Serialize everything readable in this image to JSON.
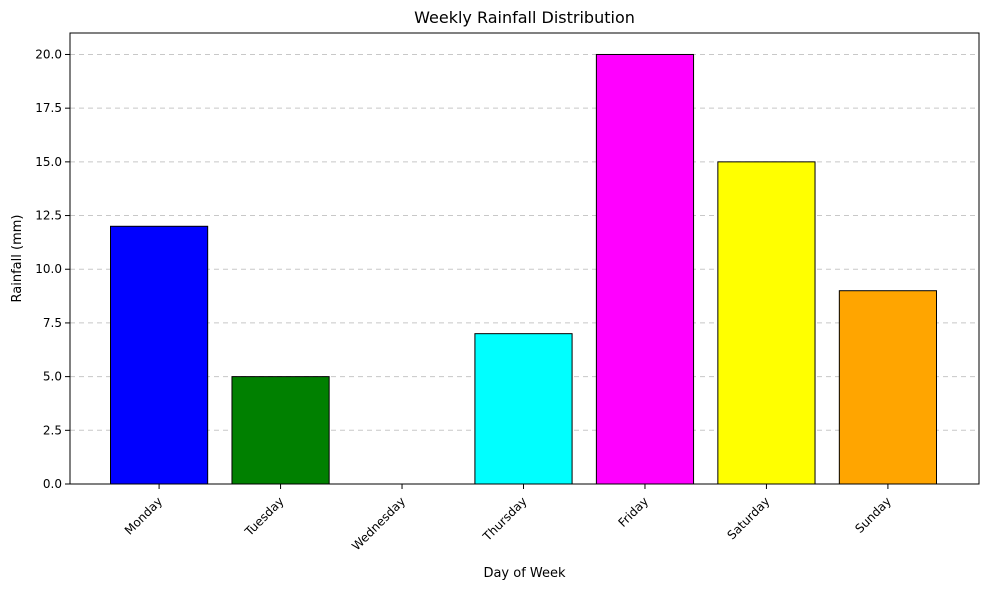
{
  "chart_data": {
    "type": "bar",
    "title": "Weekly Rainfall Distribution",
    "xlabel": "Day of Week",
    "ylabel": "Rainfall (mm)",
    "categories": [
      "Monday",
      "Tuesday",
      "Wednesday",
      "Thursday",
      "Friday",
      "Saturday",
      "Sunday"
    ],
    "values": [
      12,
      5,
      0,
      7,
      20,
      15,
      9
    ],
    "colors": [
      "#0000ff",
      "#008000",
      "#ff0000",
      "#00ffff",
      "#ff00ff",
      "#ffff00",
      "#ffa500"
    ],
    "edge_color": "#000000",
    "ylim": [
      0,
      21
    ],
    "yticks": [
      0.0,
      2.5,
      5.0,
      7.5,
      10.0,
      12.5,
      15.0,
      17.5,
      20.0
    ],
    "ytick_labels": [
      "0.0",
      "2.5",
      "5.0",
      "7.5",
      "10.0",
      "12.5",
      "15.0",
      "17.5",
      "20.0"
    ],
    "grid": "y-dashed",
    "xtick_rotation_deg": 45
  }
}
